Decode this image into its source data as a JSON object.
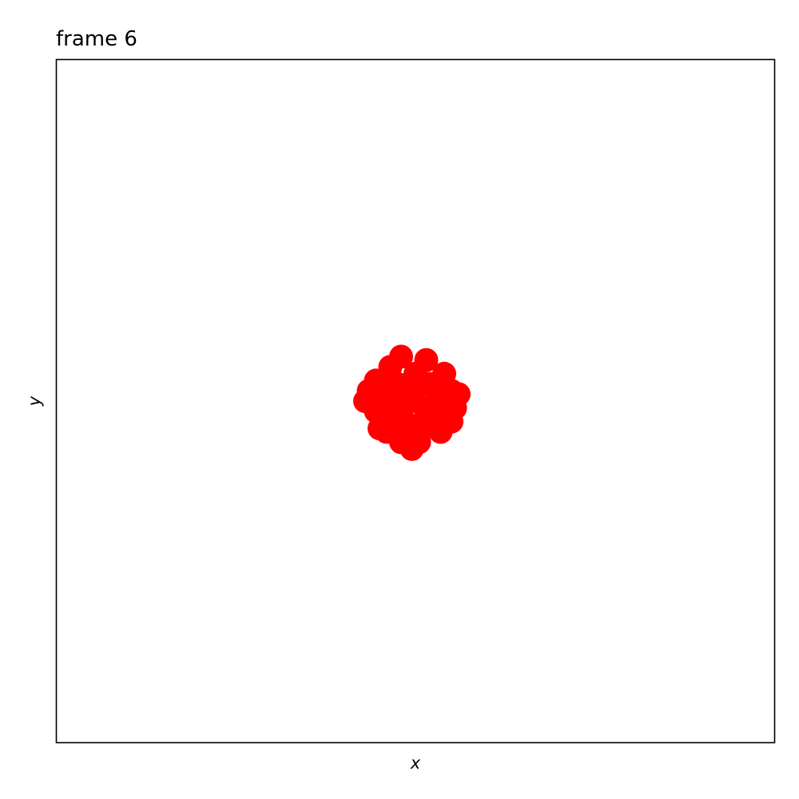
{
  "chart_data": {
    "type": "scatter",
    "title": "frame 6",
    "xlabel": "x",
    "ylabel": "y",
    "xlim": [
      -1,
      1
    ],
    "ylim": [
      -1,
      1
    ],
    "grid": false,
    "ticks_visible": false,
    "colors": {
      "points": "#ff0000",
      "frame": "#000000",
      "background": "#ffffff"
    },
    "series": [
      {
        "points": [
          [
            -0.04,
            0.13
          ],
          [
            0.03,
            0.12
          ],
          [
            0.08,
            0.08
          ],
          [
            0.1,
            0.03
          ],
          [
            0.12,
            0.02
          ],
          [
            0.11,
            -0.02
          ],
          [
            0.1,
            -0.06
          ],
          [
            0.07,
            -0.09
          ],
          [
            0.01,
            -0.12
          ],
          [
            -0.01,
            -0.14
          ],
          [
            -0.04,
            -0.12
          ],
          [
            -0.08,
            -0.09
          ],
          [
            -0.1,
            -0.08
          ],
          [
            -0.11,
            -0.03
          ],
          [
            -0.14,
            0.0
          ],
          [
            -0.13,
            0.03
          ],
          [
            -0.11,
            0.06
          ],
          [
            -0.07,
            0.1
          ],
          [
            0.0,
            0.08
          ],
          [
            0.04,
            0.05
          ],
          [
            -0.05,
            0.05
          ],
          [
            -0.08,
            0.02
          ],
          [
            0.06,
            0.0
          ],
          [
            0.0,
            0.0
          ],
          [
            -0.04,
            -0.02
          ],
          [
            0.03,
            -0.04
          ],
          [
            -0.03,
            -0.06
          ],
          [
            0.05,
            -0.07
          ],
          [
            0.0,
            -0.09
          ],
          [
            -0.06,
            -0.04
          ],
          [
            0.08,
            -0.03
          ],
          [
            -0.02,
            0.03
          ]
        ]
      }
    ]
  }
}
